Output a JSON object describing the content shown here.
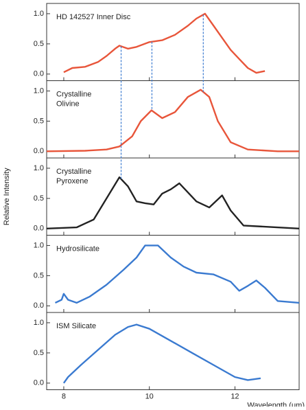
{
  "chart_data": [
    {
      "type": "line",
      "title": "HD 142527 Inner Disc",
      "color": "#e8553a",
      "x": [
        8.0,
        8.2,
        8.5,
        8.8,
        9.0,
        9.2,
        9.3,
        9.5,
        9.7,
        10.0,
        10.3,
        10.6,
        10.9,
        11.1,
        11.3,
        11.5,
        11.7,
        11.9,
        12.1,
        12.3,
        12.5,
        12.7
      ],
      "values": [
        0.03,
        0.1,
        0.12,
        0.2,
        0.3,
        0.42,
        0.47,
        0.42,
        0.45,
        0.53,
        0.56,
        0.65,
        0.8,
        0.92,
        1.0,
        0.8,
        0.6,
        0.4,
        0.25,
        0.1,
        0.02,
        0.05
      ],
      "guides": [
        9.34,
        10.06,
        11.26
      ],
      "xlim": [
        7.6,
        13.5
      ],
      "xticks": [
        8,
        10,
        12
      ],
      "ylim": [
        -0.11,
        1.17
      ],
      "yticks": [
        {
          "value": 0,
          "label": "0.0"
        },
        {
          "value": 0.5,
          "label": "0.5"
        },
        {
          "value": 1,
          "label": "1.0"
        }
      ]
    },
    {
      "type": "line",
      "title": "Crystalline Olivine",
      "color": "#e8553a",
      "x": [
        7.6,
        8.5,
        9.0,
        9.3,
        9.6,
        9.8,
        10.05,
        10.3,
        10.6,
        10.9,
        11.2,
        11.4,
        11.6,
        11.9,
        12.3,
        13.0,
        13.5
      ],
      "values": [
        0,
        0.01,
        0.03,
        0.08,
        0.25,
        0.5,
        0.68,
        0.55,
        0.65,
        0.9,
        1.02,
        0.9,
        0.5,
        0.15,
        0.03,
        0,
        0
      ],
      "xlim": [
        7.6,
        13.5
      ],
      "xticks": [
        8,
        10,
        12
      ],
      "ylim": [
        -0.11,
        1.17
      ],
      "yticks": [
        {
          "value": 0,
          "label": "0.0"
        },
        {
          "value": 0.5,
          "label": "0.5"
        },
        {
          "value": 1,
          "label": "1.0"
        }
      ]
    },
    {
      "type": "line",
      "title": "Crystalline Pyroxene",
      "color": "#222222",
      "ylabel": "Relative Intensity",
      "x": [
        7.6,
        8.3,
        8.7,
        9.0,
        9.3,
        9.5,
        9.7,
        9.9,
        10.1,
        10.3,
        10.5,
        10.7,
        10.9,
        11.1,
        11.4,
        11.7,
        11.9,
        12.2,
        13.5
      ],
      "values": [
        0,
        0.02,
        0.15,
        0.5,
        0.85,
        0.7,
        0.45,
        0.42,
        0.4,
        0.58,
        0.65,
        0.75,
        0.6,
        0.45,
        0.35,
        0.55,
        0.3,
        0.05,
        0
      ],
      "xlim": [
        7.6,
        13.5
      ],
      "xticks": [
        8,
        10,
        12
      ],
      "ylim": [
        -0.11,
        1.17
      ],
      "yticks": [
        {
          "value": 0,
          "label": "0.0"
        },
        {
          "value": 0.5,
          "label": "0.5"
        },
        {
          "value": 1,
          "label": "1.0"
        }
      ]
    },
    {
      "type": "line",
      "title": "Hydrosilicate",
      "color": "#3a7ad0",
      "x": [
        7.8,
        7.95,
        8.0,
        8.1,
        8.3,
        8.6,
        9.0,
        9.4,
        9.7,
        9.9,
        10.2,
        10.5,
        10.8,
        11.1,
        11.5,
        11.9,
        12.1,
        12.3,
        12.5,
        12.7,
        13.0,
        13.5
      ],
      "values": [
        0.05,
        0.1,
        0.2,
        0.1,
        0.05,
        0.15,
        0.35,
        0.6,
        0.8,
        1.0,
        1.0,
        0.8,
        0.65,
        0.55,
        0.52,
        0.4,
        0.25,
        0.33,
        0.42,
        0.3,
        0.08,
        0.05
      ],
      "xlim": [
        7.6,
        13.5
      ],
      "xticks": [
        8,
        10,
        12
      ],
      "ylim": [
        -0.11,
        1.17
      ],
      "yticks": [
        {
          "value": 0,
          "label": "0.0"
        },
        {
          "value": 0.5,
          "label": "0.5"
        },
        {
          "value": 1,
          "label": "1.0"
        }
      ]
    },
    {
      "type": "line",
      "title": "ISM Silicate",
      "color": "#3a7ad0",
      "xlabel": "Wavelength (μm)",
      "x": [
        8.0,
        8.1,
        8.4,
        8.8,
        9.2,
        9.5,
        9.7,
        10.0,
        10.5,
        11.0,
        11.5,
        12.0,
        12.3,
        12.6
      ],
      "values": [
        0,
        0.1,
        0.3,
        0.55,
        0.8,
        0.93,
        0.97,
        0.9,
        0.7,
        0.5,
        0.3,
        0.1,
        0.05,
        0.08
      ],
      "xlim": [
        7.6,
        13.5
      ],
      "xticks": [
        8,
        10,
        12
      ],
      "ylim": [
        -0.11,
        1.17
      ],
      "yticks": [
        {
          "value": 0,
          "label": "0.0"
        },
        {
          "value": 0.5,
          "label": "0.5"
        },
        {
          "value": 1,
          "label": "1.0"
        }
      ]
    }
  ]
}
